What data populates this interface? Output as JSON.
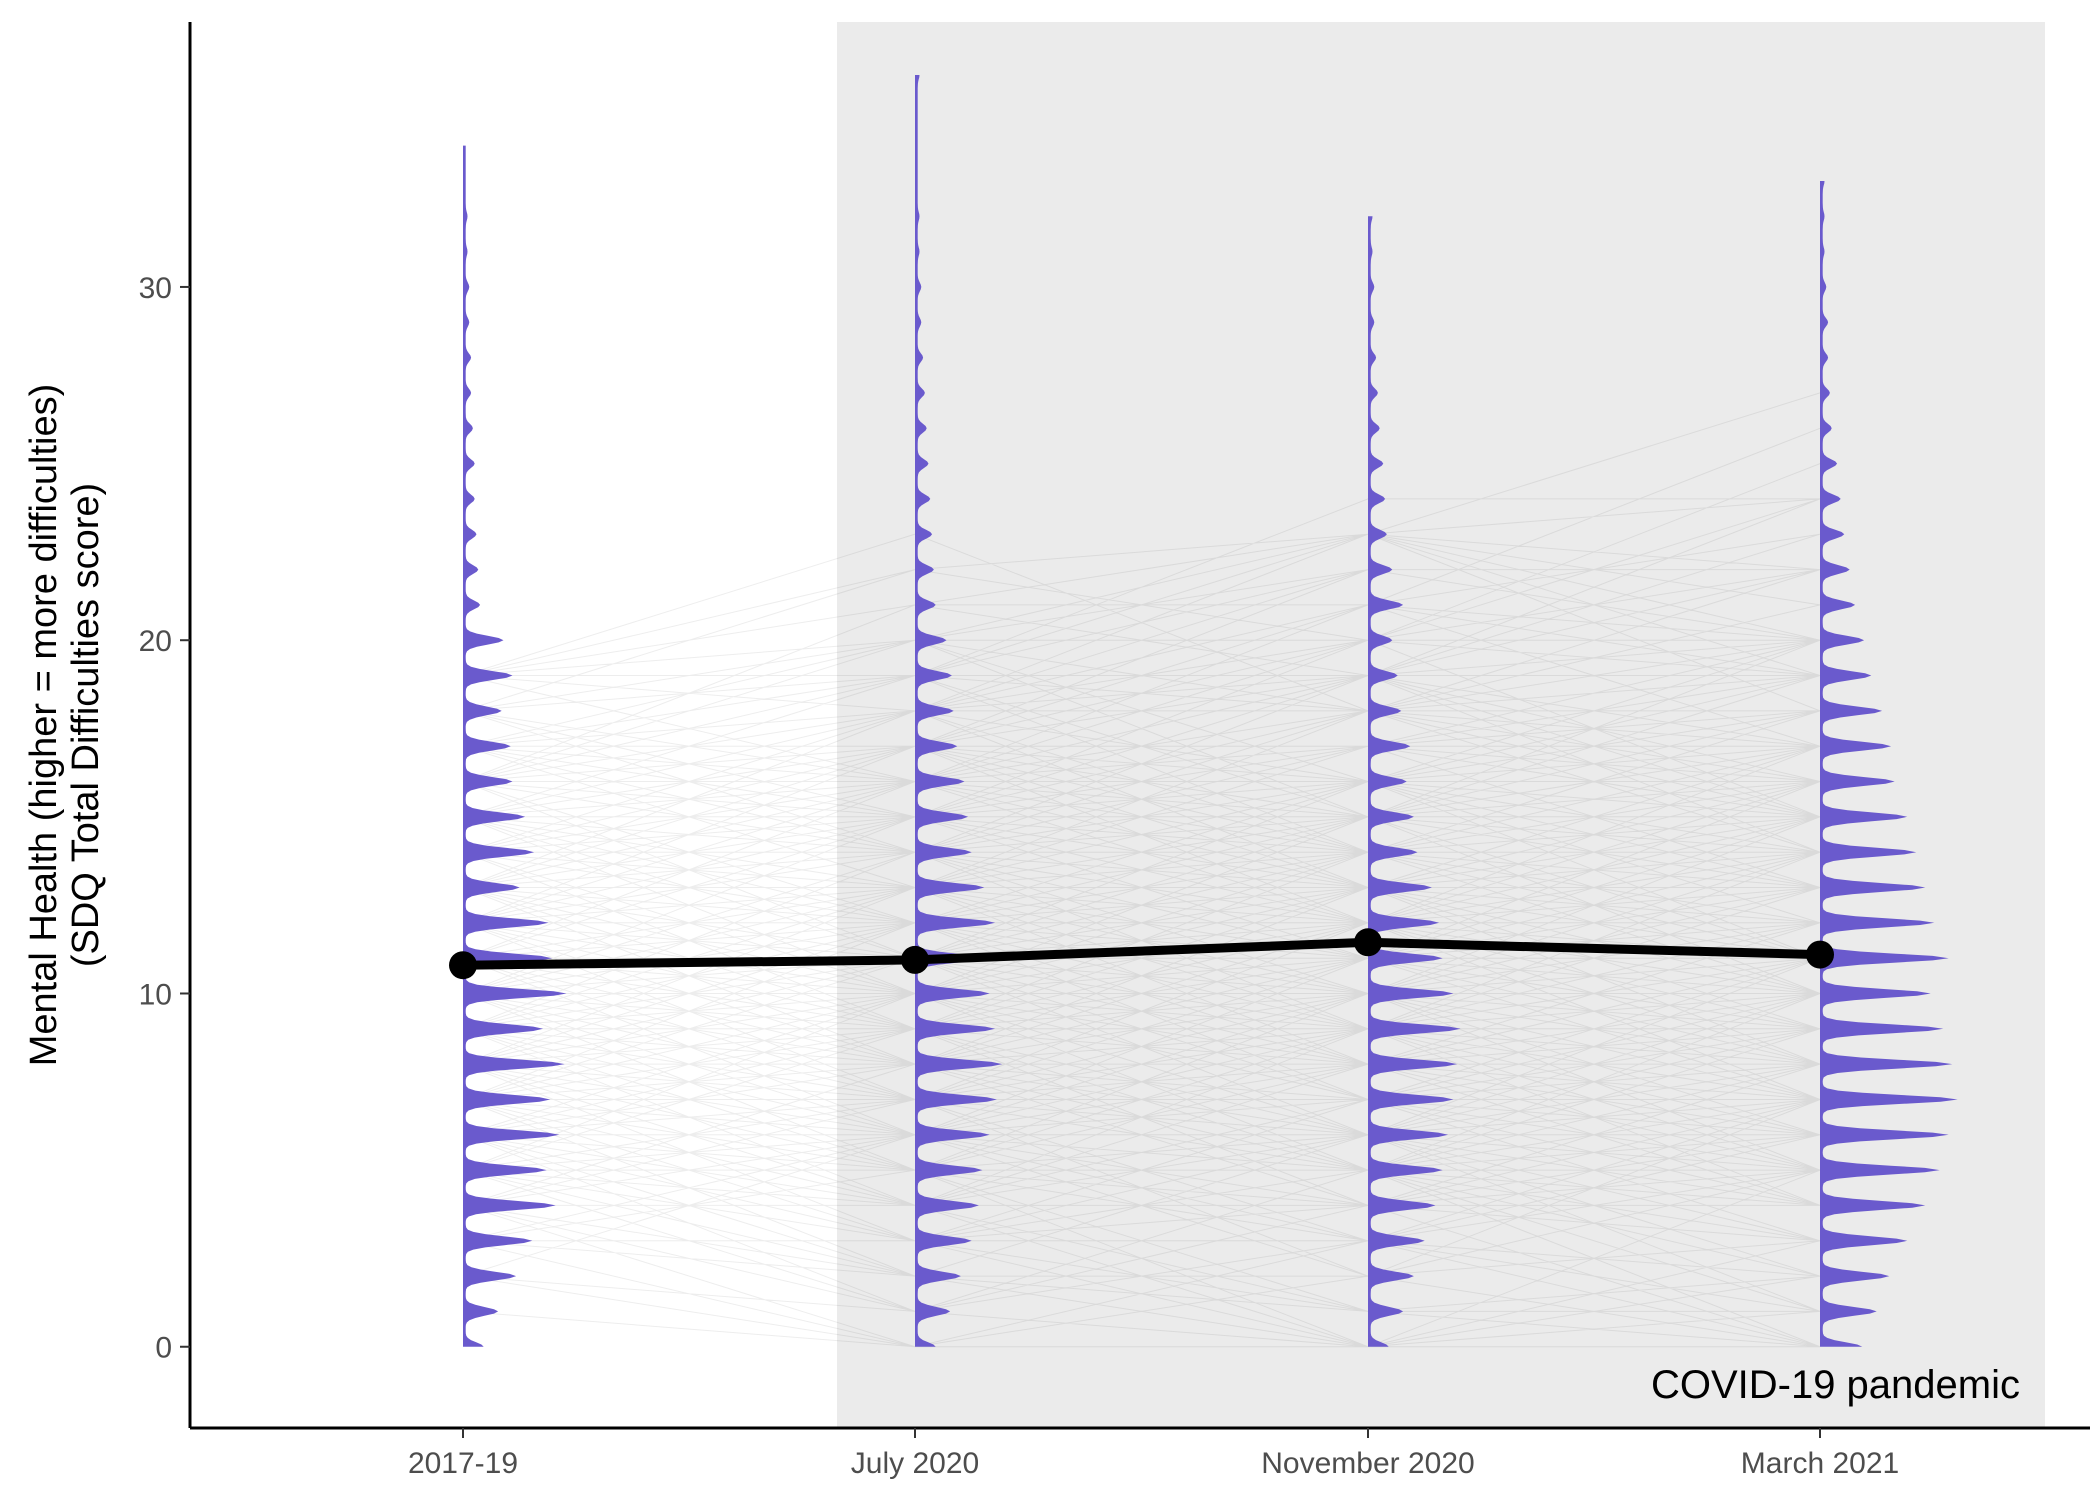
{
  "chart_data": {
    "type": "line",
    "title": "",
    "xlabel": "",
    "ylabel_lines": [
      "Mental Health (higher = more difficulties)",
      "(SDQ Total Difficulties score)"
    ],
    "categories": [
      "2017-19",
      "July 2020",
      "November 2020",
      "March 2021"
    ],
    "yticks": [
      0,
      10,
      20,
      30
    ],
    "ylim": [
      -2.3,
      37.5
    ],
    "grid": false,
    "shaded_region": {
      "from_category": "July 2020",
      "label": "COVID-19 pandemic",
      "color": "#ebebeb"
    },
    "mean_series": {
      "values": [
        10.8,
        10.95,
        11.45,
        11.1
      ],
      "color": "#000000"
    },
    "distributions": {
      "color": "#6a5acd",
      "note": "density of scores 0-36 at each wave (relative widths)",
      "waves": [
        {
          "category": "2017-19",
          "max": 34,
          "widths": [
            0.1,
            0.18,
            0.28,
            0.37,
            0.5,
            0.45,
            0.52,
            0.47,
            0.55,
            0.43,
            0.56,
            0.48,
            0.46,
            0.3,
            0.38,
            0.33,
            0.26,
            0.25,
            0.2,
            0.26,
            0.21,
            0.08,
            0.07,
            0.06,
            0.05,
            0.05,
            0.04,
            0.03,
            0.03,
            0.02,
            0.02,
            0.01,
            0.01,
            0.0,
            0.0,
            0.0,
            0.0
          ]
        },
        {
          "category": "July 2020",
          "max": 36,
          "widths": [
            0.1,
            0.18,
            0.24,
            0.3,
            0.34,
            0.36,
            0.4,
            0.44,
            0.47,
            0.43,
            0.4,
            0.38,
            0.43,
            0.37,
            0.3,
            0.28,
            0.26,
            0.22,
            0.2,
            0.19,
            0.16,
            0.1,
            0.09,
            0.08,
            0.07,
            0.06,
            0.05,
            0.04,
            0.03,
            0.02,
            0.02,
            0.01,
            0.01,
            0.0,
            0.0,
            0.0,
            0.01
          ]
        },
        {
          "category": "November 2020",
          "max": 32,
          "widths": [
            0.1,
            0.18,
            0.24,
            0.3,
            0.36,
            0.4,
            0.43,
            0.46,
            0.48,
            0.5,
            0.46,
            0.4,
            0.38,
            0.34,
            0.26,
            0.24,
            0.2,
            0.22,
            0.17,
            0.15,
            0.12,
            0.18,
            0.12,
            0.09,
            0.08,
            0.07,
            0.05,
            0.04,
            0.03,
            0.02,
            0.02,
            0.01,
            0.01,
            0.0,
            0.0,
            0.0,
            0.0
          ]
        },
        {
          "category": "March 2021",
          "max": 33,
          "widths": [
            0.22,
            0.3,
            0.37,
            0.47,
            0.57,
            0.65,
            0.7,
            0.75,
            0.72,
            0.67,
            0.6,
            0.7,
            0.62,
            0.57,
            0.52,
            0.47,
            0.4,
            0.38,
            0.33,
            0.27,
            0.23,
            0.18,
            0.15,
            0.12,
            0.1,
            0.08,
            0.05,
            0.04,
            0.03,
            0.03,
            0.02,
            0.01,
            0.01,
            0.01,
            0.0,
            0.0,
            0.0
          ]
        }
      ]
    },
    "individual_trajectories": {
      "color": "#000000",
      "note": "thin lines connecting individual scores across waves"
    }
  }
}
